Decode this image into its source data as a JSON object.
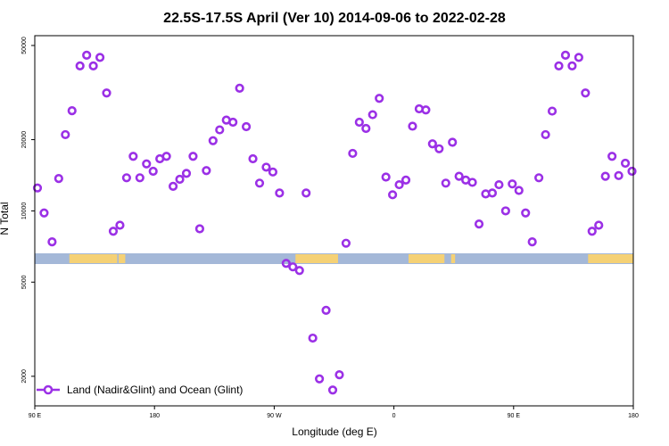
{
  "chart_data": {
    "type": "scatter",
    "title": "22.5S-17.5S April (Ver 10)   2014-09-06 to 2022-02-28",
    "xlabel": "Longitude (deg E)",
    "ylabel": "N Total",
    "x_ticks": [
      {
        "value": 90,
        "label": "90 E"
      },
      {
        "value": 180,
        "label": "180"
      },
      {
        "value": 270,
        "label": "90 W"
      },
      {
        "value": 360,
        "label": "0"
      },
      {
        "value": 450,
        "label": "90 E"
      },
      {
        "value": 540,
        "label": "180"
      }
    ],
    "y_ticks": [
      2000,
      5000,
      10000,
      20000,
      50000
    ],
    "y_scale": "log",
    "xlim": [
      90,
      540
    ],
    "ylim": [
      1500,
      55000
    ],
    "legend": {
      "label": "Land (Nadir&Glint) and Ocean (Glint)",
      "position": "bottom-left",
      "color": "#9b30e6"
    },
    "landmask": {
      "ocean_color": "#a4b8d8",
      "land_color": "#f5d175",
      "land_segments": [
        [
          116,
          148
        ],
        [
          148,
          152
        ],
        [
          153,
          158
        ],
        [
          286,
          318
        ],
        [
          371,
          398
        ],
        [
          403,
          406
        ],
        [
          506,
          546
        ]
      ]
    },
    "series": [
      {
        "name": "Land (Nadir&Glint) and Ocean (Glint)",
        "color": "#9b30e6",
        "points": [
          [
            92,
            12500
          ],
          [
            97,
            9800
          ],
          [
            103,
            7400
          ],
          [
            108,
            13700
          ],
          [
            113,
            21000
          ],
          [
            118,
            26500
          ],
          [
            124,
            41000
          ],
          [
            129,
            45500
          ],
          [
            134,
            41000
          ],
          [
            139,
            44500
          ],
          [
            144,
            31500
          ],
          [
            149,
            8200
          ],
          [
            154,
            8700
          ],
          [
            159,
            13800
          ],
          [
            164,
            17000
          ],
          [
            169,
            13800
          ],
          [
            174,
            15800
          ],
          [
            179,
            14700
          ],
          [
            184,
            16600
          ],
          [
            189,
            17000
          ],
          [
            194,
            12700
          ],
          [
            199,
            13600
          ],
          [
            204,
            14400
          ],
          [
            209,
            17000
          ],
          [
            214,
            8400
          ],
          [
            219,
            14800
          ],
          [
            224,
            19800
          ],
          [
            229,
            22000
          ],
          [
            234,
            24200
          ],
          [
            239,
            23700
          ],
          [
            244,
            33000
          ],
          [
            249,
            22700
          ],
          [
            254,
            16600
          ],
          [
            259,
            13100
          ],
          [
            264,
            15300
          ],
          [
            269,
            14600
          ],
          [
            274,
            11900
          ],
          [
            279,
            6000
          ],
          [
            284,
            5800
          ],
          [
            289,
            5600
          ],
          [
            294,
            11900
          ],
          [
            299,
            2900
          ],
          [
            304,
            1950
          ],
          [
            309,
            3800
          ],
          [
            314,
            1750
          ],
          [
            319,
            2030
          ],
          [
            324,
            7300
          ],
          [
            329,
            17500
          ],
          [
            334,
            23700
          ],
          [
            339,
            22300
          ],
          [
            344,
            25500
          ],
          [
            349,
            29900
          ],
          [
            354,
            13900
          ],
          [
            359,
            11700
          ],
          [
            364,
            12900
          ],
          [
            369,
            13500
          ],
          [
            374,
            22800
          ],
          [
            379,
            27000
          ],
          [
            384,
            26700
          ],
          [
            389,
            19200
          ],
          [
            394,
            18300
          ],
          [
            399,
            13100
          ],
          [
            404,
            19500
          ],
          [
            409,
            14000
          ],
          [
            414,
            13500
          ],
          [
            419,
            13200
          ],
          [
            424,
            8800
          ],
          [
            429,
            11800
          ],
          [
            434,
            11900
          ],
          [
            439,
            12900
          ],
          [
            444,
            10000
          ],
          [
            449,
            13000
          ],
          [
            454,
            12200
          ],
          [
            459,
            9800
          ],
          [
            464,
            7400
          ],
          [
            469,
            13800
          ],
          [
            474,
            21000
          ],
          [
            479,
            26400
          ],
          [
            484,
            41000
          ],
          [
            489,
            45500
          ],
          [
            494,
            41000
          ],
          [
            499,
            44500
          ],
          [
            504,
            31500
          ],
          [
            509,
            8200
          ],
          [
            514,
            8700
          ],
          [
            519,
            14000
          ],
          [
            524,
            17000
          ],
          [
            529,
            14100
          ],
          [
            534,
            15900
          ],
          [
            539,
            14700
          ]
        ]
      }
    ]
  }
}
